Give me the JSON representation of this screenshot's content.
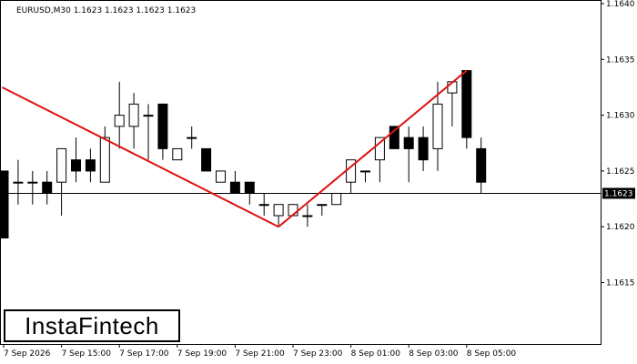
{
  "header": {
    "info": "EURUSD,M30  1.1623 1.1623 1.1623 1.1623"
  },
  "logo": {
    "text": "InstaFintech"
  },
  "colors": {
    "pattern_line": "#e01010",
    "bull_fill": "#ffffff",
    "bear_fill": "#000000",
    "candle_stroke": "#000000",
    "price_box": "#000000"
  },
  "chart_data": {
    "type": "candlestick",
    "symbol": "EURUSD",
    "timeframe": "M30",
    "ylim": [
      1.16095,
      1.164
    ],
    "y_ticks": [
      1.1615,
      1.162,
      1.1625,
      1.163,
      1.1635,
      1.164
    ],
    "y_tick_labels": [
      "1.1615",
      "1.1620",
      "1.1625",
      "1.1630",
      "1.1635",
      "1.1640"
    ],
    "x_tick_labels": [
      {
        "bar": 0,
        "label": "7 Sep 2026"
      },
      {
        "bar": 4,
        "label": "7 Sep 15:00"
      },
      {
        "bar": 8,
        "label": "7 Sep 17:00"
      },
      {
        "bar": 12,
        "label": "7 Sep 19:00"
      },
      {
        "bar": 16,
        "label": "7 Sep 21:00"
      },
      {
        "bar": 20,
        "label": "7 Sep 23:00"
      },
      {
        "bar": 24,
        "label": "8 Sep 01:00"
      },
      {
        "bar": 28,
        "label": "8 Sep 03:00"
      },
      {
        "bar": 32,
        "label": "8 Sep 05:00"
      }
    ],
    "current_price": 1.1623,
    "current_price_label": "1.1623",
    "candles": [
      {
        "o": 1.1625,
        "h": 1.1625,
        "l": 1.1619,
        "c": 1.1619
      },
      {
        "o": 1.1624,
        "h": 1.1626,
        "l": 1.1622,
        "c": 1.1624
      },
      {
        "o": 1.1624,
        "h": 1.1625,
        "l": 1.1622,
        "c": 1.1624
      },
      {
        "o": 1.1624,
        "h": 1.1625,
        "l": 1.1622,
        "c": 1.1623
      },
      {
        "o": 1.1624,
        "h": 1.1627,
        "l": 1.1621,
        "c": 1.1627
      },
      {
        "o": 1.1626,
        "h": 1.1628,
        "l": 1.1624,
        "c": 1.1625
      },
      {
        "o": 1.1626,
        "h": 1.1627,
        "l": 1.1624,
        "c": 1.1625
      },
      {
        "o": 1.1624,
        "h": 1.1629,
        "l": 1.1624,
        "c": 1.1628
      },
      {
        "o": 1.1629,
        "h": 1.1633,
        "l": 1.1627,
        "c": 1.163
      },
      {
        "o": 1.1629,
        "h": 1.1632,
        "l": 1.1627,
        "c": 1.1631
      },
      {
        "o": 1.163,
        "h": 1.1631,
        "l": 1.1626,
        "c": 1.163
      },
      {
        "o": 1.1631,
        "h": 1.1631,
        "l": 1.1626,
        "c": 1.1627
      },
      {
        "o": 1.1626,
        "h": 1.1627,
        "l": 1.1626,
        "c": 1.1627
      },
      {
        "o": 1.1628,
        "h": 1.1629,
        "l": 1.1627,
        "c": 1.1628
      },
      {
        "o": 1.1627,
        "h": 1.1627,
        "l": 1.1625,
        "c": 1.1625
      },
      {
        "o": 1.1624,
        "h": 1.1625,
        "l": 1.1624,
        "c": 1.1625
      },
      {
        "o": 1.1624,
        "h": 1.1625,
        "l": 1.1623,
        "c": 1.1623
      },
      {
        "o": 1.1624,
        "h": 1.1624,
        "l": 1.1622,
        "c": 1.1623
      },
      {
        "o": 1.1622,
        "h": 1.1623,
        "l": 1.1621,
        "c": 1.1622
      },
      {
        "o": 1.1621,
        "h": 1.1622,
        "l": 1.162,
        "c": 1.1622
      },
      {
        "o": 1.1621,
        "h": 1.1622,
        "l": 1.1621,
        "c": 1.1622
      },
      {
        "o": 1.1621,
        "h": 1.1622,
        "l": 1.162,
        "c": 1.1621
      },
      {
        "o": 1.1622,
        "h": 1.1622,
        "l": 1.1621,
        "c": 1.1622
      },
      {
        "o": 1.1622,
        "h": 1.1623,
        "l": 1.1622,
        "c": 1.1623
      },
      {
        "o": 1.1624,
        "h": 1.1626,
        "l": 1.1623,
        "c": 1.1626
      },
      {
        "o": 1.1625,
        "h": 1.1625,
        "l": 1.1624,
        "c": 1.1625
      },
      {
        "o": 1.1626,
        "h": 1.1628,
        "l": 1.1624,
        "c": 1.1628
      },
      {
        "o": 1.1629,
        "h": 1.1629,
        "l": 1.1627,
        "c": 1.1627
      },
      {
        "o": 1.1628,
        "h": 1.1629,
        "l": 1.1624,
        "c": 1.1627
      },
      {
        "o": 1.1628,
        "h": 1.1629,
        "l": 1.1625,
        "c": 1.1626
      },
      {
        "o": 1.1627,
        "h": 1.1633,
        "l": 1.1625,
        "c": 1.1631
      },
      {
        "o": 1.1632,
        "h": 1.1633,
        "l": 1.1629,
        "c": 1.1633
      },
      {
        "o": 1.1634,
        "h": 1.1634,
        "l": 1.1627,
        "c": 1.1628
      },
      {
        "o": 1.1627,
        "h": 1.1628,
        "l": 1.1623,
        "c": 1.1624
      }
    ],
    "pattern_lines": [
      {
        "from": {
          "bar": -0.1,
          "price": 1.16325
        },
        "to": {
          "bar": 19,
          "price": 1.162
        }
      },
      {
        "from": {
          "bar": 19,
          "price": 1.162
        },
        "to": {
          "bar": 32,
          "price": 1.1634
        }
      }
    ]
  }
}
